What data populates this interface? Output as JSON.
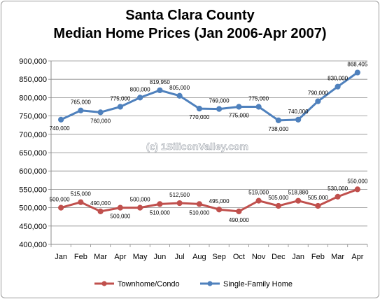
{
  "chart_data": {
    "type": "line",
    "title_line1": "Santa Clara County",
    "title_line2": "Median Home Prices (Jan 2006-Apr 2007)",
    "categories": [
      "Jan",
      "Feb",
      "Mar",
      "Apr",
      "May",
      "Jun",
      "Jul",
      "Aug",
      "Sep",
      "Oct",
      "Nov",
      "Dec",
      "Jan",
      "Feb",
      "Mar",
      "Apr"
    ],
    "ylim": [
      400000,
      900000
    ],
    "yticks": [
      400000,
      450000,
      500000,
      550000,
      600000,
      650000,
      700000,
      750000,
      800000,
      850000,
      900000
    ],
    "grid": true,
    "legend": "bottom",
    "watermark": "(c) 1SiliconValley.com",
    "series": [
      {
        "name": "Townhome/Condo",
        "color": "#c0504d",
        "values": [
          500000,
          515000,
          490000,
          500000,
          500000,
          510000,
          512500,
          510000,
          495000,
          490000,
          519000,
          505000,
          518880,
          505000,
          530000,
          550000
        ],
        "labels": [
          "500,000",
          "515,000",
          "490,000",
          "500,000",
          "500,000",
          "510,000",
          "512,500",
          "510,000",
          "495,000",
          "490,000",
          "519,000",
          "505,000",
          "518,880",
          "505,000",
          "530,000",
          "550,000"
        ]
      },
      {
        "name": "Single-Family Home",
        "color": "#4f81bd",
        "values": [
          740000,
          765000,
          760000,
          775000,
          800000,
          819950,
          805000,
          770000,
          769000,
          775000,
          775000,
          738000,
          740000,
          790000,
          830000,
          868405
        ],
        "labels": [
          "740,000",
          "765,000",
          "760,000",
          "775,000",
          "800,000",
          "819,950",
          "805,000",
          "770,000",
          "769,000",
          "775,000",
          "775,000",
          "738,000",
          "740,000",
          "790,000",
          "830,000",
          "868,405"
        ]
      }
    ]
  }
}
